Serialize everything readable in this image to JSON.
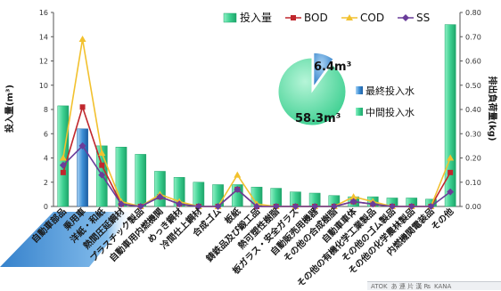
{
  "chart_data": {
    "type": "bar+line",
    "categories": [
      "自動車部品",
      "乗用車",
      "洋紙・和紙",
      "熱間圧延鋼材",
      "プラスチック製品",
      "自動車用内燃機関",
      "めっき鋼材",
      "冷間仕上鋼材",
      "合成ゴム",
      "板紙",
      "鋳鉄品及び鍛工品",
      "熱可塑性樹脂",
      "板ガラス・安全ガラス",
      "自動販売用機器",
      "その他の合成樹脂",
      "自動車車体",
      "その他の有機化学工業製品",
      "その他のゴム製品",
      "その他の化学農林製品",
      "内燃機関電装品",
      "その他"
    ],
    "highlight_index": 1,
    "series": [
      {
        "name": "投入量",
        "kind": "bar",
        "axis": "left",
        "values": [
          8.3,
          6.4,
          5.0,
          4.9,
          4.3,
          2.9,
          2.4,
          2.0,
          1.8,
          1.8,
          1.6,
          1.5,
          1.2,
          1.1,
          0.9,
          0.8,
          0.8,
          0.7,
          0.7,
          0.6,
          15.0
        ]
      },
      {
        "name": "BOD",
        "kind": "line",
        "axis": "right",
        "color": "#c0272d",
        "values": [
          0.14,
          0.41,
          0.17,
          0.01,
          0.0,
          0.04,
          0.01,
          0.0,
          0.0,
          0.07,
          0.0,
          0.0,
          0.0,
          0.0,
          0.0,
          0.02,
          0.01,
          0.0,
          0.0,
          0.0,
          0.14
        ]
      },
      {
        "name": "COD",
        "kind": "line",
        "axis": "right",
        "color": "#f2c12e",
        "values": [
          0.2,
          0.69,
          0.22,
          0.02,
          0.0,
          0.05,
          0.02,
          0.0,
          0.0,
          0.13,
          0.01,
          0.0,
          0.0,
          0.0,
          0.0,
          0.04,
          0.02,
          0.0,
          0.0,
          0.0,
          0.2
        ]
      },
      {
        "name": "SS",
        "kind": "line",
        "axis": "right",
        "color": "#6a3d9a",
        "values": [
          0.17,
          0.25,
          0.13,
          0.01,
          0.0,
          0.04,
          0.01,
          0.0,
          0.0,
          0.07,
          0.0,
          0.0,
          0.0,
          0.0,
          0.0,
          0.02,
          0.01,
          0.0,
          0.0,
          0.0,
          0.06
        ]
      }
    ],
    "yleft": {
      "label": "投入量(m³)",
      "ylim": [
        0,
        16
      ],
      "ticks": [
        0,
        2,
        4,
        6,
        8,
        10,
        12,
        14,
        16
      ]
    },
    "yright": {
      "label": "排出負荷量(kg)",
      "ylim": [
        0,
        0.8
      ],
      "ticks": [
        "0.00",
        "0.10",
        "0.20",
        "0.30",
        "0.40",
        "0.50",
        "0.60",
        "0.70",
        "0.80"
      ]
    },
    "grid": false,
    "legend": {
      "placement": "top-right"
    },
    "inset_pie": {
      "type": "pie",
      "slices": [
        {
          "name": "最終投入水",
          "label": "6.4m³",
          "value": 6.4,
          "color": "#3d8fd6"
        },
        {
          "name": "中間投入水",
          "label": "58.3m³",
          "value": 58.3,
          "color": "#55d3a0"
        }
      ]
    }
  },
  "colors": {
    "bar_fill": "#3ccf90",
    "bar_highlight": "#3d8fd6",
    "axis": "#555555",
    "banner": "#3d8fd6"
  },
  "taskbar": {
    "ime_label": "ATOK",
    "ime_state": "あ 連 片 漢 ₨",
    "ime_extra": "KANA"
  }
}
